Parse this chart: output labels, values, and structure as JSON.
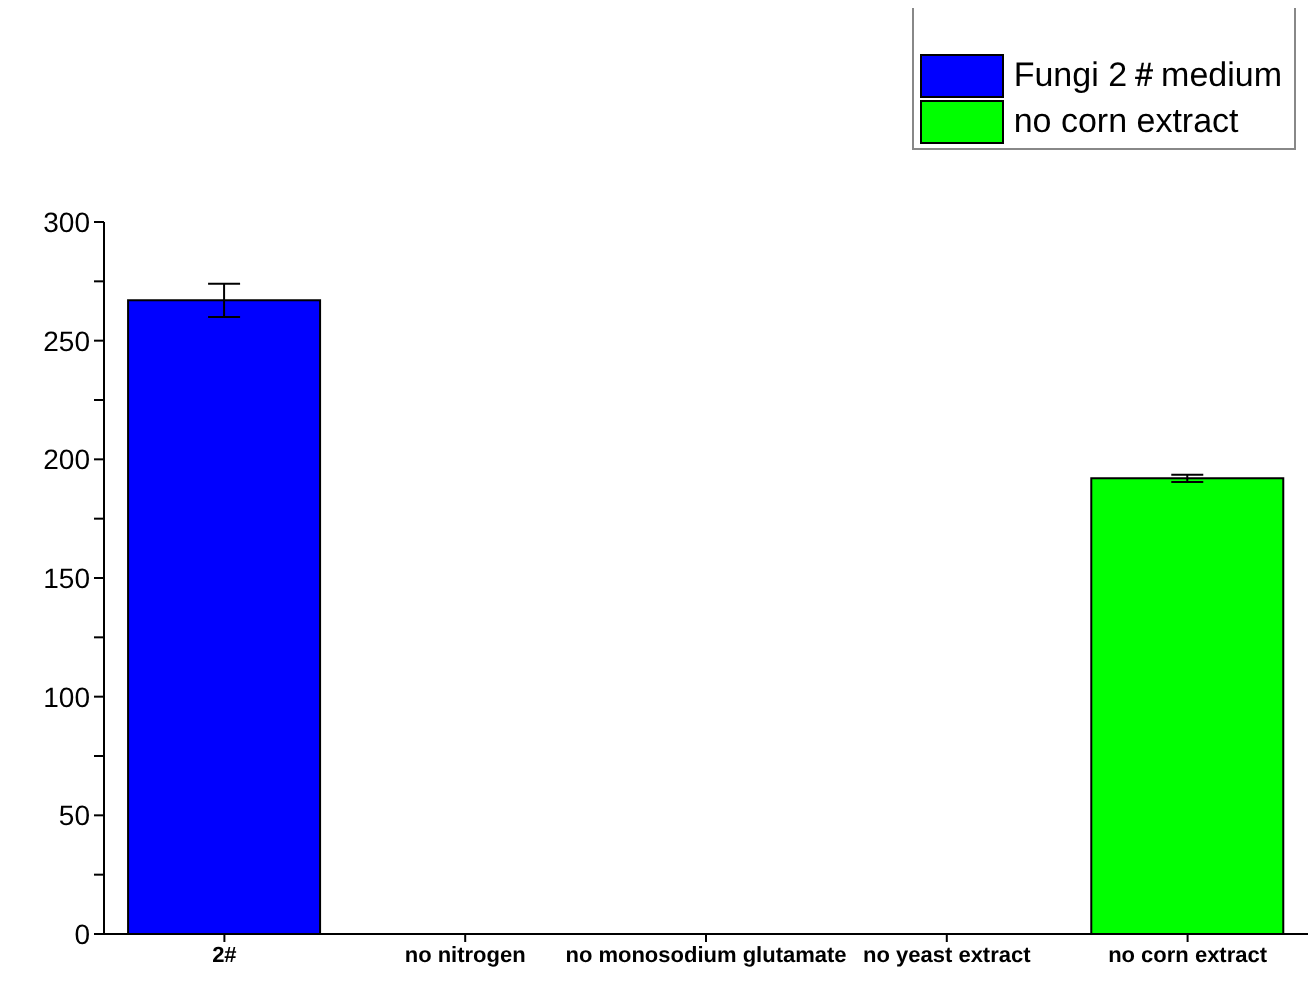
{
  "chart_data": {
    "type": "bar",
    "categories": [
      "2#",
      "no nitrogen",
      "no monosodium glutamate",
      "no yeast extract",
      "no corn extract"
    ],
    "series": [
      {
        "name": "Fungi 2＃medium",
        "color": "#0000ff",
        "values": [
          267,
          null,
          null,
          null,
          null
        ],
        "errors": [
          7,
          null,
          null,
          null,
          null
        ]
      },
      {
        "name": "no corn extract",
        "color": "#00ff00",
        "values": [
          null,
          null,
          null,
          null,
          192
        ],
        "errors": [
          null,
          null,
          null,
          null,
          1.5
        ]
      }
    ],
    "ylim": [
      0,
      300
    ],
    "yticks": [
      0,
      {
        "value": 25,
        "label": null
      },
      50,
      {
        "value": 75,
        "label": null
      },
      100,
      {
        "value": 125,
        "label": null
      },
      150,
      {
        "value": 175,
        "label": null
      },
      200,
      {
        "value": 225,
        "label": null
      },
      250,
      {
        "value": 275,
        "label": null
      },
      300
    ],
    "grid": false,
    "legend": "top right"
  }
}
